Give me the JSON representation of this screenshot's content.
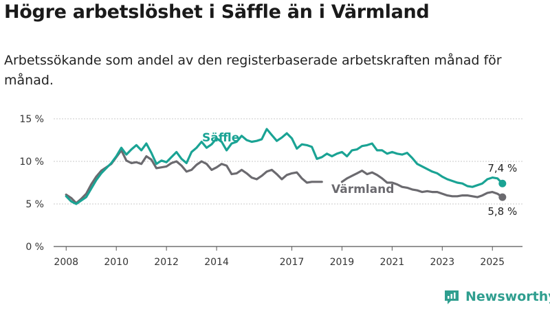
{
  "title": "Högre arbetslöshet i Säffle än i Värmland",
  "subtitle": "Arbetssökande som andel av den registerbaserade arbetskraften månad för månad.",
  "brand": {
    "name": "Newsworthy",
    "icon": "newsworthy-logo-icon",
    "color": "#2f9e8f"
  },
  "chart_data": {
    "type": "line",
    "title": "Högre arbetslöshet i Säffle än i Värmland",
    "subtitle": "Arbetssökande som andel av den registerbaserade arbetskraften månad för månad.",
    "xlabel": "",
    "ylabel": "",
    "xlim": [
      2007.5,
      2026.2
    ],
    "ylim": [
      0,
      15
    ],
    "y_ticks": [
      0,
      5,
      10,
      15
    ],
    "y_tick_labels": [
      "0 %",
      "5 %",
      "10 %",
      "15 %"
    ],
    "x_ticks": [
      2008,
      2010,
      2012,
      2014,
      2017,
      2019,
      2021,
      2023,
      2025
    ],
    "x_tick_labels": [
      "2008",
      "2010",
      "2012",
      "2014",
      "2017",
      "2019",
      "2021",
      "2023",
      "2025"
    ],
    "grid": "horizontal",
    "legend": "direct labels",
    "series": [
      {
        "name": "Säffle",
        "color": "#1aa394",
        "end_label": "7,4 %",
        "x": [
          2008.0,
          2008.2,
          2008.4,
          2008.6,
          2008.8,
          2009.0,
          2009.2,
          2009.4,
          2009.6,
          2009.8,
          2010.0,
          2010.2,
          2010.4,
          2010.6,
          2010.8,
          2011.0,
          2011.2,
          2011.4,
          2011.6,
          2011.8,
          2012.0,
          2012.2,
          2012.4,
          2012.6,
          2012.8,
          2013.0,
          2013.2,
          2013.4,
          2013.6,
          2013.8,
          2014.0,
          2014.2,
          2014.4,
          2014.6,
          2014.8,
          2015.0,
          2015.2,
          2015.4,
          2015.6,
          2015.8,
          2016.0,
          2016.2,
          2016.4,
          2016.6,
          2016.8,
          2017.0,
          2017.2,
          2017.4,
          2017.6,
          2017.8,
          2018.0,
          2018.2,
          2018.4,
          2018.6,
          2018.8,
          2019.0,
          2019.2,
          2019.4,
          2019.6,
          2019.8,
          2020.0,
          2020.2,
          2020.4,
          2020.6,
          2020.8,
          2021.0,
          2021.2,
          2021.4,
          2021.6,
          2021.8,
          2022.0,
          2022.2,
          2022.4,
          2022.6,
          2022.8,
          2023.0,
          2023.2,
          2023.4,
          2023.6,
          2023.8,
          2024.0,
          2024.2,
          2024.4,
          2024.6,
          2024.8,
          2025.0,
          2025.2,
          2025.4
        ],
        "values": [
          5.9,
          5.3,
          5.0,
          5.4,
          5.8,
          6.8,
          7.8,
          8.6,
          9.2,
          9.8,
          10.6,
          11.6,
          10.8,
          11.4,
          11.9,
          11.3,
          12.1,
          11.0,
          9.7,
          10.1,
          9.9,
          10.5,
          11.1,
          10.3,
          9.8,
          11.1,
          11.6,
          12.3,
          11.6,
          12.0,
          12.7,
          12.3,
          11.3,
          12.1,
          12.3,
          13.0,
          12.5,
          12.3,
          12.4,
          12.6,
          13.8,
          13.1,
          12.4,
          12.8,
          13.3,
          12.7,
          11.5,
          12.0,
          11.9,
          11.7,
          10.3,
          10.5,
          10.9,
          10.6,
          10.9,
          11.1,
          10.6,
          11.3,
          11.4,
          11.8,
          11.9,
          12.1,
          11.3,
          11.3,
          10.9,
          11.1,
          10.9,
          10.8,
          11.0,
          10.4,
          9.7,
          9.4,
          9.1,
          8.8,
          8.6,
          8.2,
          7.9,
          7.7,
          7.5,
          7.4,
          7.1,
          7.0,
          7.2,
          7.4,
          7.9,
          8.1,
          8.0,
          7.4
        ]
      },
      {
        "name": "Värmland",
        "color": "#6b6a6f",
        "end_label": "5,8 %",
        "x": [
          2008.0,
          2008.2,
          2008.4,
          2008.6,
          2008.8,
          2009.0,
          2009.2,
          2009.4,
          2009.6,
          2009.8,
          2010.0,
          2010.2,
          2010.4,
          2010.6,
          2010.8,
          2011.0,
          2011.2,
          2011.4,
          2011.6,
          2011.8,
          2012.0,
          2012.2,
          2012.4,
          2012.6,
          2012.8,
          2013.0,
          2013.2,
          2013.4,
          2013.6,
          2013.8,
          2014.0,
          2014.2,
          2014.4,
          2014.6,
          2014.8,
          2015.0,
          2015.2,
          2015.4,
          2015.6,
          2015.8,
          2016.0,
          2016.2,
          2016.4,
          2016.6,
          2016.8,
          2017.0,
          2017.2,
          2017.4,
          2017.6,
          2017.8,
          2018.0,
          2018.2,
          2018.4,
          2018.6,
          2018.8,
          2019.0,
          2019.2,
          2019.4,
          2019.6,
          2019.8,
          2020.0,
          2020.2,
          2020.4,
          2020.6,
          2020.8,
          2021.0,
          2021.2,
          2021.4,
          2021.6,
          2021.8,
          2022.0,
          2022.2,
          2022.4,
          2022.6,
          2022.8,
          2023.0,
          2023.2,
          2023.4,
          2023.6,
          2023.8,
          2024.0,
          2024.2,
          2024.4,
          2024.6,
          2024.8,
          2025.0,
          2025.2,
          2025.4
        ],
        "values": [
          6.1,
          5.7,
          5.1,
          5.6,
          6.2,
          7.3,
          8.2,
          8.9,
          9.3,
          9.7,
          10.5,
          11.3,
          10.1,
          9.8,
          9.9,
          9.7,
          10.6,
          10.2,
          9.2,
          9.3,
          9.4,
          9.8,
          10.0,
          9.5,
          8.8,
          9.0,
          9.6,
          10.0,
          9.7,
          9.0,
          9.3,
          9.7,
          9.5,
          8.5,
          8.6,
          9.0,
          8.6,
          8.1,
          7.9,
          8.3,
          8.8,
          9.0,
          8.5,
          7.9,
          8.4,
          8.6,
          8.7,
          8.0,
          7.5,
          7.6,
          7.6,
          7.6,
          null,
          null,
          null,
          7.6,
          8.0,
          8.3,
          8.6,
          8.9,
          8.5,
          8.7,
          8.4,
          8.0,
          7.5,
          7.5,
          7.3,
          7.0,
          6.9,
          6.7,
          6.6,
          6.4,
          6.5,
          6.4,
          6.4,
          6.2,
          6.0,
          5.9,
          5.9,
          6.0,
          6.0,
          5.9,
          5.8,
          6.0,
          6.3,
          6.4,
          6.2,
          5.8
        ]
      }
    ]
  }
}
